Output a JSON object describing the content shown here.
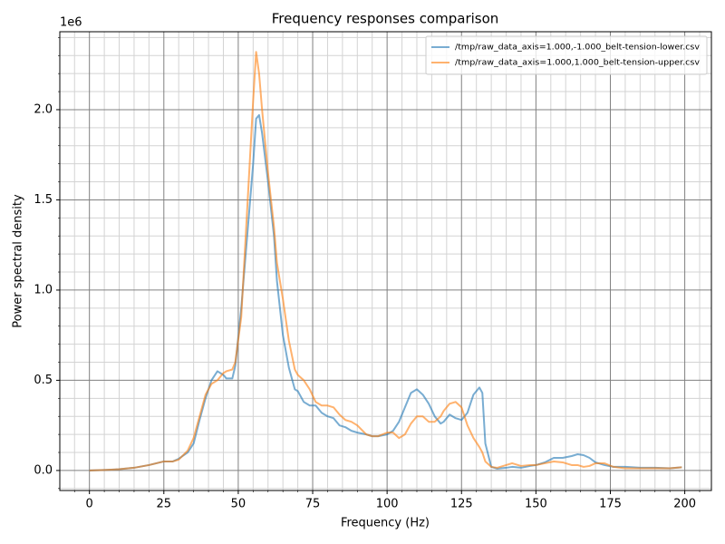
{
  "chart_data": {
    "type": "line",
    "title": "Frequency responses comparison",
    "xlabel": "Frequency (Hz)",
    "ylabel": "Power spectral density",
    "y_offset_text": "1e6",
    "x": [
      0,
      5,
      10,
      15,
      20,
      25,
      28,
      30,
      33,
      35,
      37,
      39,
      41,
      43,
      45,
      46,
      48,
      49,
      51,
      53,
      55,
      56,
      57,
      58,
      60,
      62,
      63,
      65,
      67,
      69,
      70,
      72,
      74,
      76,
      78,
      80,
      82,
      84,
      86,
      88,
      90,
      93,
      95,
      97,
      100,
      102,
      104,
      106,
      108,
      110,
      112,
      114,
      116,
      118,
      119,
      121,
      123,
      125,
      127,
      129,
      131,
      132,
      133,
      135,
      137,
      140,
      142,
      145,
      148,
      150,
      153,
      156,
      159,
      162,
      164,
      166,
      168,
      170,
      173,
      176,
      180,
      185,
      190,
      195,
      199
    ],
    "series": [
      {
        "name": "/tmp/raw_data_axis=1.000,-1.000_belt-tension-lower.csv",
        "color": "#1f77b4",
        "values": [
          0,
          0.003,
          0.007,
          0.015,
          0.03,
          0.05,
          0.05,
          0.065,
          0.1,
          0.15,
          0.28,
          0.4,
          0.5,
          0.55,
          0.53,
          0.51,
          0.51,
          0.58,
          0.9,
          1.3,
          1.7,
          1.95,
          1.97,
          1.87,
          1.6,
          1.3,
          1.05,
          0.75,
          0.57,
          0.45,
          0.44,
          0.38,
          0.36,
          0.36,
          0.32,
          0.3,
          0.29,
          0.25,
          0.24,
          0.22,
          0.21,
          0.2,
          0.19,
          0.19,
          0.2,
          0.22,
          0.27,
          0.35,
          0.43,
          0.45,
          0.42,
          0.37,
          0.3,
          0.26,
          0.27,
          0.31,
          0.29,
          0.28,
          0.32,
          0.42,
          0.46,
          0.43,
          0.15,
          0.02,
          0.01,
          0.015,
          0.02,
          0.015,
          0.025,
          0.03,
          0.045,
          0.07,
          0.07,
          0.08,
          0.09,
          0.085,
          0.07,
          0.045,
          0.03,
          0.02,
          0.02,
          0.015,
          0.015,
          0.012,
          0.018
        ]
      },
      {
        "name": "/tmp/raw_data_axis=1.000,1.000_belt-tension-upper.csv",
        "color": "#ff7f0e",
        "values": [
          0,
          0.003,
          0.007,
          0.015,
          0.03,
          0.05,
          0.05,
          0.06,
          0.11,
          0.18,
          0.3,
          0.42,
          0.48,
          0.5,
          0.54,
          0.55,
          0.56,
          0.6,
          0.85,
          1.45,
          2.05,
          2.32,
          2.2,
          2.0,
          1.65,
          1.35,
          1.15,
          0.95,
          0.72,
          0.56,
          0.53,
          0.5,
          0.45,
          0.38,
          0.36,
          0.36,
          0.35,
          0.31,
          0.28,
          0.27,
          0.25,
          0.2,
          0.19,
          0.19,
          0.21,
          0.21,
          0.18,
          0.2,
          0.26,
          0.3,
          0.3,
          0.27,
          0.27,
          0.3,
          0.33,
          0.37,
          0.38,
          0.35,
          0.25,
          0.18,
          0.13,
          0.1,
          0.05,
          0.02,
          0.015,
          0.03,
          0.04,
          0.025,
          0.03,
          0.03,
          0.04,
          0.05,
          0.045,
          0.03,
          0.03,
          0.02,
          0.025,
          0.04,
          0.04,
          0.02,
          0.012,
          0.012,
          0.013,
          0.012,
          0.018
        ]
      }
    ],
    "alpha": 0.6,
    "xlim": [
      -9.95,
      208.95
    ],
    "ylim": [
      -0.111,
      2.432
    ],
    "xticks": [
      0,
      25,
      50,
      75,
      100,
      125,
      150,
      175,
      200
    ],
    "yticks": [
      {
        "value": 0,
        "label": "0.0"
      },
      0.5,
      {
        "value": 1,
        "label": "1.0"
      },
      1.5,
      {
        "value": 2,
        "label": "2.0"
      }
    ],
    "xminor": [
      -5,
      5,
      10,
      15,
      20,
      30,
      35,
      40,
      45,
      55,
      60,
      65,
      70,
      80,
      85,
      90,
      95,
      105,
      110,
      115,
      120,
      130,
      135,
      140,
      145,
      155,
      160,
      165,
      170,
      180,
      185,
      190,
      195,
      205
    ],
    "yminor": [
      -0.1,
      0.1,
      0.2,
      0.3,
      0.4,
      0.6,
      0.7,
      0.8,
      0.9,
      1.1,
      1.2,
      1.3,
      1.4,
      1.6,
      1.7,
      1.8,
      1.9,
      2.1,
      2.2,
      2.3,
      2.4
    ],
    "grid": true,
    "minor_grid": true,
    "legend": "upper right"
  }
}
